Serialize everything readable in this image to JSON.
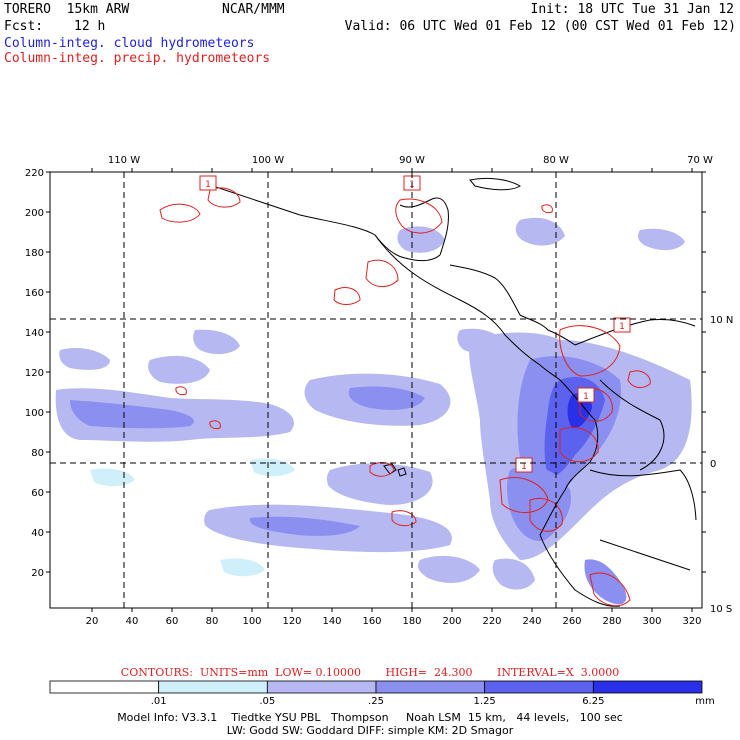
{
  "header": {
    "model": "TORERO  15km ARW",
    "center": "NCAR/MMM",
    "init": "Init: 18 UTC Tue 31 Jan 12",
    "fcst_label": "Fcst:",
    "fcst_value": "12 h",
    "valid": "Valid: 06 UTC Wed 01 Feb 12 (00 CST Wed 01 Feb 12)",
    "field1": "Column-integ. cloud hydrometeors",
    "field2": "Column-integ. precip. hydrometeors"
  },
  "map": {
    "lon_labels": [
      "110 W",
      "100 W",
      "90 W",
      "80 W",
      "70 W"
    ],
    "lat_labels": [
      "10 N",
      "0",
      "10 S"
    ],
    "x_ticks": [
      "20",
      "40",
      "60",
      "80",
      "100",
      "120",
      "140",
      "160",
      "180",
      "200",
      "220",
      "240",
      "260",
      "280",
      "300",
      "320"
    ],
    "y_ticks": [
      "20",
      "40",
      "60",
      "80",
      "100",
      "120",
      "140",
      "160",
      "180",
      "200",
      "220"
    ],
    "contour_boxes": [
      "1",
      "1",
      "1",
      "1",
      "1"
    ],
    "colors": {
      "light": "#cfeffb",
      "mid1": "#b6b8f2",
      "mid2": "#8b8ff0",
      "mid3": "#5c62ee",
      "dark": "#2a2fe8",
      "contour": "#e02020",
      "coast": "#000000"
    }
  },
  "contour_info": "CONTOURS:  UNITS=mm  LOW= 0.10000       HIGH=  24.300       INTERVAL=X  3.0000",
  "colorbar": {
    "levels": [
      ".01",
      ".05",
      ".25",
      "1.25",
      "6.25"
    ],
    "unit": "mm",
    "colors": [
      "#ffffff",
      "#cfeffb",
      "#b6b8f2",
      "#8b8ff0",
      "#5c62ee",
      "#2a2fe8"
    ]
  },
  "model_info": {
    "line1": "Model Info: V3.3.1    Tiedtke YSU PBL   Thompson     Noah LSM  15 km,   44 levels,   100 sec",
    "line2": "LW: Godd SW: Goddard DIFF: simple KM: 2D Smagor"
  }
}
